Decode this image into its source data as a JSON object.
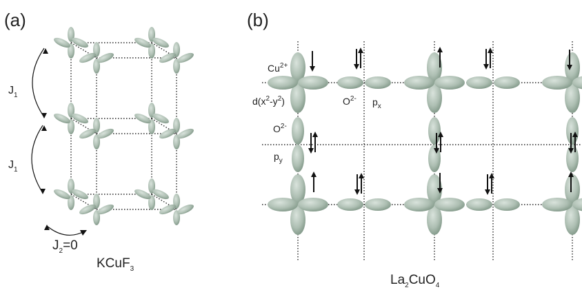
{
  "panel_a": {
    "label": "(a)",
    "j1_upper": {
      "main": "J",
      "sub": "1"
    },
    "j1_lower": {
      "main": "J",
      "sub": "1"
    },
    "j2": {
      "main": "J",
      "sub": "2",
      "rest": "=0"
    },
    "compound": {
      "main": "KCuF",
      "sub": "3"
    }
  },
  "panel_b": {
    "label": "(b)",
    "cu": {
      "main": "Cu",
      "sup": "2+"
    },
    "orbital": {
      "parts": [
        "d(x",
        "2",
        "-y",
        "2",
        ")"
      ]
    },
    "o_row": {
      "main": "O",
      "sup": "2-"
    },
    "px": {
      "main": "p",
      "sub": "x"
    },
    "o_col": {
      "main": "O",
      "sup": "2-"
    },
    "py": {
      "main": "p",
      "sub": "y"
    },
    "compound": {
      "parts": [
        "La",
        "2",
        "CuO",
        "4"
      ]
    }
  }
}
